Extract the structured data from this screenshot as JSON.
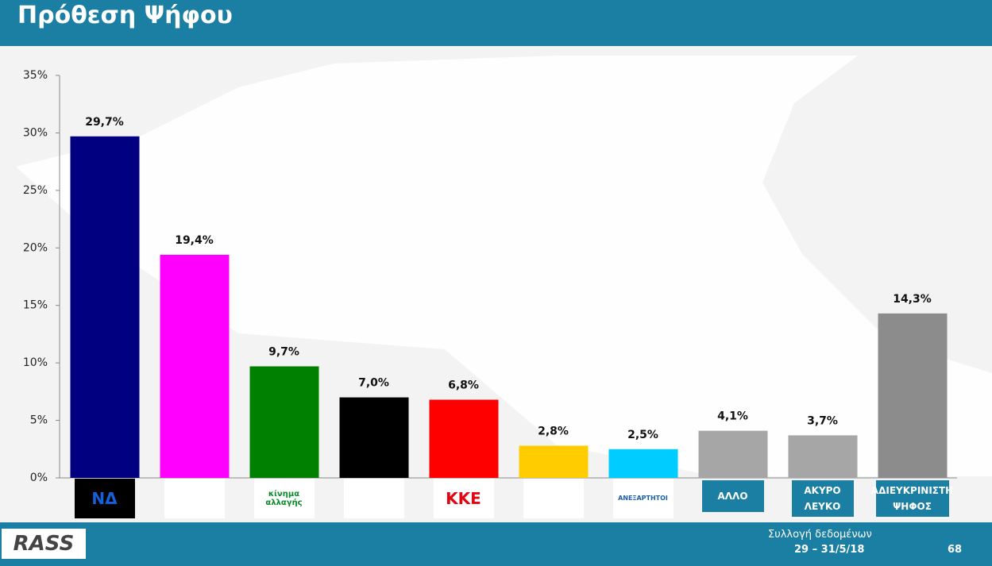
{
  "header": {
    "title": "Πρόθεση Ψήφου"
  },
  "chart_data": {
    "type": "bar",
    "categories": [
      "ΝΔ",
      null,
      "κίνημα αλλαγής",
      null,
      "ΚΚΕ",
      null,
      "ΑΝΕΞΑΡΤΗΤΟΙ",
      "ΑΛΛΟ",
      "ΑΚΥΡΟ ΛΕΥΚΟ",
      "ΑΔΙΕΥΚΡΙΝΙΣΤΗ ΨΗΦΟΣ"
    ],
    "values": [
      29.7,
      19.4,
      9.7,
      7.0,
      6.8,
      2.8,
      2.5,
      4.1,
      3.7,
      14.3
    ],
    "value_labels": [
      "29,7%",
      "19,4%",
      "9,7%",
      "7,0%",
      "6,8%",
      "2,8%",
      "2,5%",
      "4,1%",
      "3,7%",
      "14,3%"
    ],
    "colors": [
      "#000080",
      "#ff00ff",
      "#008000",
      "#000000",
      "#ff0000",
      "#ffcc00",
      "#00ccff",
      "#a6a6a6",
      "#a6a6a6",
      "#8c8c8c"
    ],
    "ylim": [
      0,
      35
    ],
    "yticks": [
      {
        "value": 0,
        "label": "0%"
      },
      {
        "value": 5,
        "label": "5%"
      },
      {
        "value": 10,
        "label": "10%"
      },
      {
        "value": 15,
        "label": "15%"
      },
      {
        "value": 20,
        "label": "20%"
      },
      {
        "value": 25,
        "label": "25%"
      },
      {
        "value": 30,
        "label": "30%"
      },
      {
        "value": 35,
        "label": "35%"
      }
    ],
    "grid": false
  },
  "footer": {
    "logo": "RASS",
    "source": "Συλλογή δεδομένων",
    "dates": "29 – 31/5/18",
    "page": "68"
  }
}
